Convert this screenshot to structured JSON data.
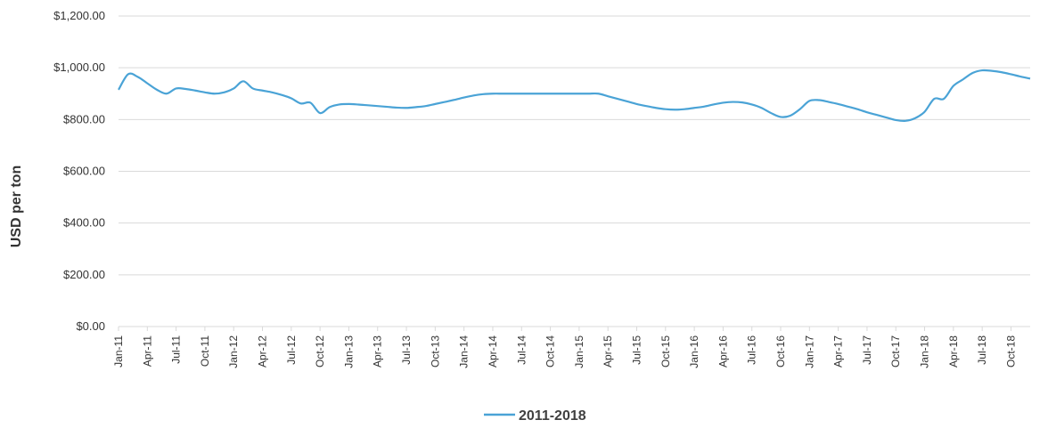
{
  "chart_data": {
    "type": "line",
    "ylabel": "USD per ton",
    "ylim": [
      0,
      1200
    ],
    "y_ticks": [
      "$0.00",
      "$200.00",
      "$400.00",
      "$600.00",
      "$800.00",
      "$1,000.00",
      "$1,200.00"
    ],
    "y_tick_values": [
      0,
      200,
      400,
      600,
      800,
      1000,
      1200
    ],
    "x_tick_labels": [
      "Jan-11",
      "Apr-11",
      "Jul-11",
      "Oct-11",
      "Jan-12",
      "Apr-12",
      "Jul-12",
      "Oct-12",
      "Jan-13",
      "Apr-13",
      "Jul-13",
      "Oct-13",
      "Jan-14",
      "Apr-14",
      "Jul-14",
      "Oct-14",
      "Jan-15",
      "Apr-15",
      "Jul-15",
      "Oct-15",
      "Jan-16",
      "Apr-16",
      "Jul-16",
      "Oct-16",
      "Jan-17",
      "Apr-17",
      "Jul-17",
      "Oct-17",
      "Jan-18",
      "Apr-18",
      "Jul-18",
      "Oct-18"
    ],
    "grid": true,
    "legend_position": "bottom",
    "series": [
      {
        "name": "2011-2018",
        "color": "#4aa3d6",
        "points": [
          [
            "2011-01",
            915
          ],
          [
            "2011-02",
            975
          ],
          [
            "2011-03",
            965
          ],
          [
            "2011-04",
            940
          ],
          [
            "2011-05",
            915
          ],
          [
            "2011-06",
            900
          ],
          [
            "2011-07",
            920
          ],
          [
            "2011-08",
            918
          ],
          [
            "2011-09",
            912
          ],
          [
            "2011-10",
            905
          ],
          [
            "2011-11",
            900
          ],
          [
            "2011-12",
            905
          ],
          [
            "2012-01",
            920
          ],
          [
            "2012-02",
            948
          ],
          [
            "2012-03",
            920
          ],
          [
            "2012-04",
            912
          ],
          [
            "2012-05",
            905
          ],
          [
            "2012-06",
            895
          ],
          [
            "2012-07",
            882
          ],
          [
            "2012-08",
            862
          ],
          [
            "2012-09",
            865
          ],
          [
            "2012-10",
            825
          ],
          [
            "2012-11",
            848
          ],
          [
            "2012-12",
            858
          ],
          [
            "2013-01",
            860
          ],
          [
            "2013-02",
            858
          ],
          [
            "2013-03",
            855
          ],
          [
            "2013-04",
            852
          ],
          [
            "2013-05",
            849
          ],
          [
            "2013-06",
            846
          ],
          [
            "2013-07",
            845
          ],
          [
            "2013-08",
            848
          ],
          [
            "2013-09",
            852
          ],
          [
            "2013-10",
            860
          ],
          [
            "2013-11",
            868
          ],
          [
            "2013-12",
            876
          ],
          [
            "2014-01",
            885
          ],
          [
            "2014-02",
            893
          ],
          [
            "2014-03",
            898
          ],
          [
            "2014-04",
            900
          ],
          [
            "2014-05",
            900
          ],
          [
            "2014-06",
            900
          ],
          [
            "2014-07",
            900
          ],
          [
            "2014-08",
            900
          ],
          [
            "2014-09",
            900
          ],
          [
            "2014-10",
            900
          ],
          [
            "2014-11",
            900
          ],
          [
            "2014-12",
            900
          ],
          [
            "2015-01",
            900
          ],
          [
            "2015-02",
            900
          ],
          [
            "2015-03",
            900
          ],
          [
            "2015-04",
            890
          ],
          [
            "2015-05",
            880
          ],
          [
            "2015-06",
            870
          ],
          [
            "2015-07",
            860
          ],
          [
            "2015-08",
            852
          ],
          [
            "2015-09",
            845
          ],
          [
            "2015-10",
            840
          ],
          [
            "2015-11",
            838
          ],
          [
            "2015-12",
            840
          ],
          [
            "2016-01",
            845
          ],
          [
            "2016-02",
            850
          ],
          [
            "2016-03",
            858
          ],
          [
            "2016-04",
            865
          ],
          [
            "2016-05",
            868
          ],
          [
            "2016-06",
            866
          ],
          [
            "2016-07",
            858
          ],
          [
            "2016-08",
            845
          ],
          [
            "2016-09",
            825
          ],
          [
            "2016-10",
            810
          ],
          [
            "2016-11",
            815
          ],
          [
            "2016-12",
            840
          ],
          [
            "2017-01",
            872
          ],
          [
            "2017-02",
            875
          ],
          [
            "2017-03",
            868
          ],
          [
            "2017-04",
            860
          ],
          [
            "2017-05",
            850
          ],
          [
            "2017-06",
            840
          ],
          [
            "2017-07",
            828
          ],
          [
            "2017-08",
            818
          ],
          [
            "2017-09",
            808
          ],
          [
            "2017-10",
            798
          ],
          [
            "2017-11",
            795
          ],
          [
            "2017-12",
            805
          ],
          [
            "2018-01",
            830
          ],
          [
            "2018-02",
            880
          ],
          [
            "2018-03",
            880
          ],
          [
            "2018-04",
            930
          ],
          [
            "2018-05",
            955
          ],
          [
            "2018-06",
            980
          ],
          [
            "2018-07",
            990
          ],
          [
            "2018-08",
            988
          ],
          [
            "2018-09",
            983
          ],
          [
            "2018-10",
            975
          ],
          [
            "2018-11",
            966
          ],
          [
            "2018-12",
            958
          ]
        ]
      }
    ]
  },
  "legend": {
    "label": "2011-2018",
    "color": "#4aa3d6"
  }
}
